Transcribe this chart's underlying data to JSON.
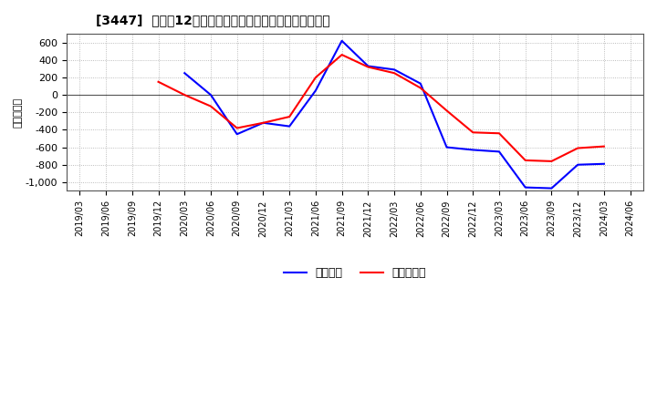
{
  "title": "[3447]  利益の12か月移動合計の対前年同期増減額の推移",
  "ylabel": "（百万円）",
  "background_color": "#ffffff",
  "plot_background_color": "#ffffff",
  "grid_color": "#aaaaaa",
  "line_color_blue": "#0000ff",
  "line_color_red": "#ff0000",
  "legend_blue": "経常利益",
  "legend_red": "当期純利益",
  "ylim": [
    -1100,
    700
  ],
  "yticks": [
    -1000,
    -800,
    -600,
    -400,
    -200,
    0,
    200,
    400,
    600
  ],
  "x_labels": [
    "2019/03",
    "2019/06",
    "2019/09",
    "2019/12",
    "2020/03",
    "2020/06",
    "2020/09",
    "2020/12",
    "2021/03",
    "2021/06",
    "2021/09",
    "2021/12",
    "2022/03",
    "2022/06",
    "2022/09",
    "2022/12",
    "2023/03",
    "2023/06",
    "2023/09",
    "2023/12",
    "2024/03",
    "2024/06"
  ],
  "blue_values": [
    null,
    null,
    null,
    null,
    250,
    0,
    -450,
    -320,
    -360,
    50,
    620,
    330,
    290,
    130,
    -600,
    -630,
    -650,
    -1060,
    -1070,
    -800,
    -790,
    null
  ],
  "red_values": [
    null,
    null,
    null,
    150,
    0,
    -130,
    -380,
    -320,
    -250,
    200,
    460,
    320,
    250,
    80,
    -180,
    -430,
    -440,
    -750,
    -760,
    -610,
    -590,
    null
  ]
}
